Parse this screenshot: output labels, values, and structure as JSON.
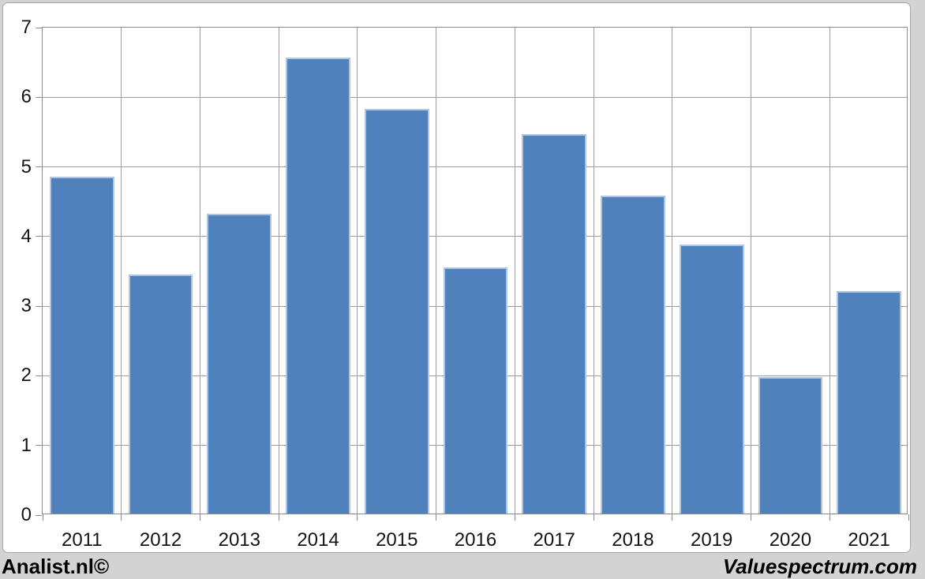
{
  "chart_data": {
    "type": "bar",
    "title": "",
    "xlabel": "",
    "ylabel": "",
    "categories": [
      "2011",
      "2012",
      "2013",
      "2014",
      "2015",
      "2016",
      "2017",
      "2018",
      "2019",
      "2020",
      "2021"
    ],
    "values": [
      4.84,
      3.43,
      4.31,
      6.55,
      5.81,
      3.53,
      5.45,
      4.56,
      3.86,
      1.96,
      3.19
    ],
    "ylim": [
      0,
      7
    ],
    "yticks": [
      0,
      1,
      2,
      3,
      4,
      5,
      6,
      7
    ],
    "grid": true,
    "legend": false,
    "bar_gap_fraction": 0.09
  },
  "colors": {
    "bar_fill": "#4f81bd",
    "bar_border": "#aec4e1",
    "gridline": "#9d9d9d",
    "axis": "#8a8a8a",
    "canvas_bg": "#ffffff",
    "page_bg": "#d3d3d3",
    "label_text": "#141414",
    "footer_text": "#000000"
  },
  "footer": {
    "brand_left": "Analist.nl©",
    "brand_right": "Valuespectrum.com"
  }
}
